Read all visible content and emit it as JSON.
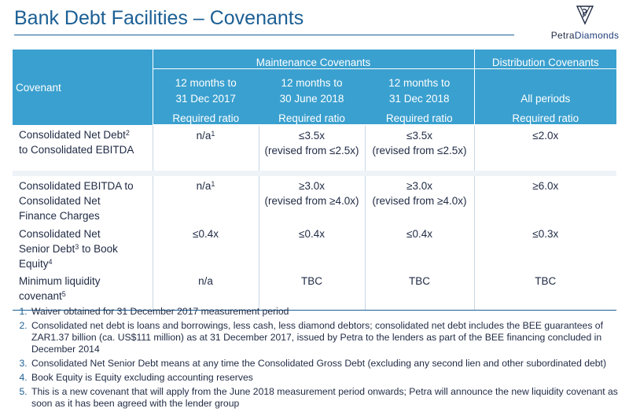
{
  "title": "Bank Debt Facilities – Covenants",
  "logo": {
    "brand_first": "Petra",
    "brand_second": "Diamonds"
  },
  "table": {
    "covenant_header": "Covenant",
    "group_maintenance": "Maintenance Covenants",
    "group_distribution": "Distribution Covenants",
    "periods": [
      {
        "line1": "12 months to",
        "line2": "31 Dec 2017"
      },
      {
        "line1": "12 months to",
        "line2": "30 June 2018"
      },
      {
        "line1": "12 months to",
        "line2": "31 Dec 2018"
      },
      {
        "line1": "All periods",
        "line2": ""
      }
    ],
    "required_ratio": "Required ratio",
    "rows": [
      {
        "label_line1": "Consolidated Net Debt",
        "label_sup1": "2",
        "label_line2": "to  Consolidated EBITDA",
        "label_line3": "",
        "v2017": "n/a",
        "v2017_sup": "1",
        "vjun18": "≤3.5x",
        "vjun18_note": "(revised from ≤2.5x)",
        "vdec18": "≤3.5x",
        "vdec18_note": "(revised from ≤2.5x)",
        "vdist": "≤2.0x"
      },
      {
        "label_line1": "Consolidated EBITDA to",
        "label_line2": "Consolidated Net",
        "label_line3": "Finance  Charges",
        "v2017": "n/a",
        "v2017_sup": "1",
        "vjun18": "≥3.0x",
        "vjun18_note": "(revised from ≥4.0x)",
        "vdec18": "≥3.0x",
        "vdec18_note": "(revised from ≥4.0x)",
        "vdist": "≥6.0x"
      },
      {
        "label_line1": "Consolidated Net",
        "label_line2a": "Senior  Debt",
        "label_sup2": "3",
        "label_line2b": " to Book",
        "label_line3": "Equity",
        "label_sup3": "4",
        "v2017": "≤0.4x",
        "vjun18": "≤0.4x",
        "vdec18": "≤0.4x",
        "vdist": "≤0.3x"
      },
      {
        "label_line1": "Minimum liquidity",
        "label_line2": "covenant",
        "label_sup2": "5",
        "v2017": "n/a",
        "vjun18": "TBC",
        "vdec18": "TBC",
        "vdist": "TBC"
      }
    ]
  },
  "footnotes": [
    "Waiver obtained for 31 December 2017 measurement period",
    "Consolidated net debt is loans and borrowings, less cash, less diamond debtors; consolidated net debt includes the BEE guarantees of ZAR1.37 billion (ca. US$111 million) as at 31 December 2017, issued by Petra to the lenders as part of the BEE financing concluded in December 2014",
    "Consolidated Net Senior Debt means at any time the Consolidated Gross Debt (excluding any second lien and other subordinated debt)",
    "Book Equity is Equity excluding accounting reserves",
    "This is a new covenant that will apply from the June 2018 measurement period onwards; Petra will announce the new liquidity covenant as soon as it has been agreed with the lender group"
  ],
  "colors": {
    "header_bg": "#3aa0cf",
    "title": "#1b5f94",
    "text": "#1f2a44",
    "gap_row": "#eef3f8"
  }
}
